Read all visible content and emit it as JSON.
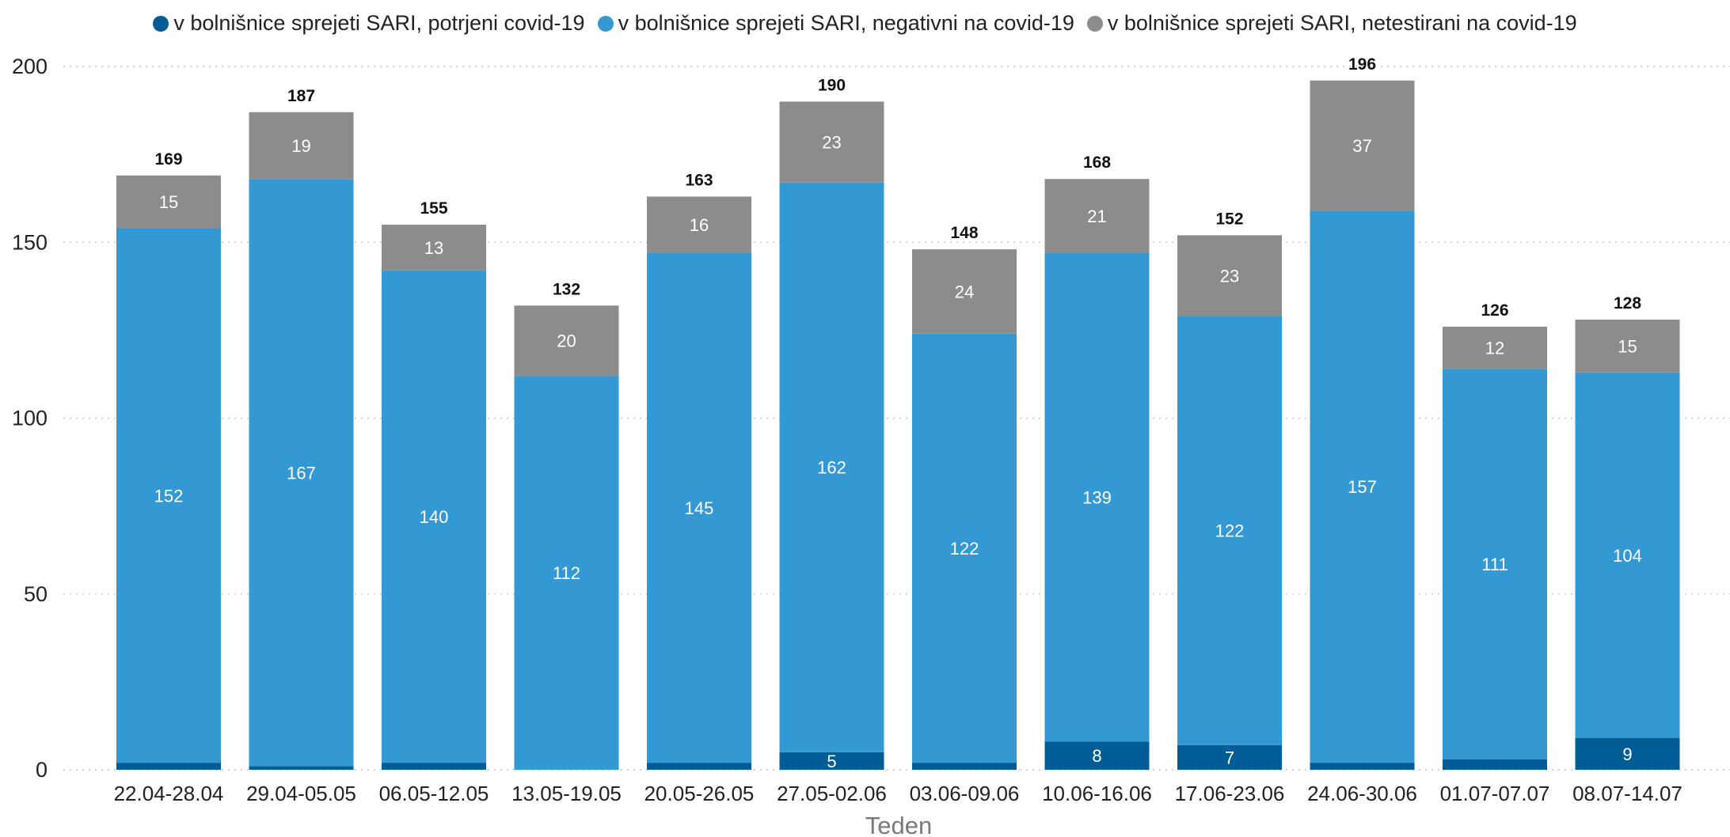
{
  "chart_data": {
    "type": "bar",
    "stacked": true,
    "categories": [
      "22.04-28.04",
      "29.04-05.05",
      "06.05-12.05",
      "13.05-19.05",
      "20.05-26.05",
      "27.05-02.06",
      "03.06-09.06",
      "10.06-16.06",
      "17.06-23.06",
      "24.06-30.06",
      "01.07-07.07",
      "08.07-14.07"
    ],
    "series": [
      {
        "name": "v bolnišnice sprejeti SARI, potrjeni covid-19",
        "color": "#005c94",
        "values": [
          2,
          1,
          2,
          0,
          2,
          5,
          2,
          8,
          7,
          2,
          3,
          9
        ],
        "labels": [
          null,
          null,
          null,
          null,
          null,
          "5",
          null,
          "8",
          "7",
          null,
          null,
          "9"
        ]
      },
      {
        "name": "v bolnišnice sprejeti SARI, negativni na covid-19",
        "color": "#3498d3",
        "values": [
          152,
          167,
          140,
          112,
          145,
          162,
          122,
          139,
          122,
          157,
          111,
          104
        ],
        "labels": [
          "152",
          "167",
          "140",
          "112",
          "145",
          "162",
          "122",
          "139",
          "122",
          "157",
          "111",
          "104"
        ]
      },
      {
        "name": "v bolnišnice sprejeti SARI, netestirani na covid-19",
        "color": "#8c8c8c",
        "values": [
          15,
          19,
          13,
          20,
          16,
          23,
          24,
          21,
          23,
          37,
          12,
          15
        ],
        "labels": [
          "15",
          "19",
          "13",
          "20",
          "16",
          "23",
          "24",
          "21",
          "23",
          "37",
          "12",
          "15"
        ]
      }
    ],
    "totals": [
      "169",
      "187",
      "155",
      "132",
      "163",
      "190",
      "148",
      "168",
      "152",
      "196",
      "126",
      "128"
    ],
    "y_ticks": [
      "0",
      "50",
      "100",
      "150",
      "200"
    ],
    "xlabel": "Teden",
    "ylabel": "",
    "ylim": [
      0,
      200
    ],
    "grid": "horizontal dotted",
    "legend_position": "top"
  }
}
